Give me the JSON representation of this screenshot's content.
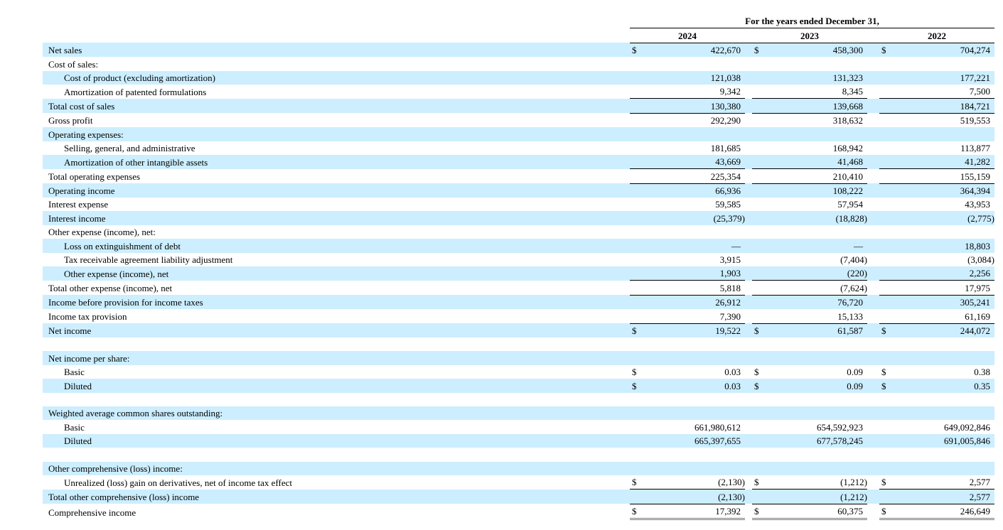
{
  "header": {
    "period": "For the years ended December 31,",
    "years": [
      "2024",
      "2023",
      "2022"
    ]
  },
  "currency_symbol": "$",
  "colors": {
    "shade": "#cceeff"
  },
  "rows": [
    {
      "label": "Net sales",
      "values": [
        "422,670",
        "458,300",
        "704,274"
      ],
      "dollar": true
    },
    {
      "label": "Cost of sales:",
      "values": [
        "",
        "",
        ""
      ]
    },
    {
      "label": "Cost of product (excluding amortization)",
      "indent": true,
      "values": [
        "121,038",
        "131,323",
        "177,221"
      ]
    },
    {
      "label": "Amortization of patented formulations",
      "indent": true,
      "values": [
        "9,342",
        "8,345",
        "7,500"
      ]
    },
    {
      "label": "Total cost of sales",
      "values": [
        "130,380",
        "139,668",
        "184,721"
      ],
      "ul": true
    },
    {
      "label": "Gross profit",
      "values": [
        "292,290",
        "318,632",
        "519,553"
      ],
      "ul": true
    },
    {
      "label": "Operating expenses:",
      "values": [
        "",
        "",
        ""
      ]
    },
    {
      "label": "Selling, general, and administrative",
      "indent": true,
      "values": [
        "181,685",
        "168,942",
        "113,877"
      ]
    },
    {
      "label": "Amortization of other intangible assets",
      "indent": true,
      "values": [
        "43,669",
        "41,468",
        "41,282"
      ]
    },
    {
      "label": "Total operating expenses",
      "values": [
        "225,354",
        "210,410",
        "155,159"
      ],
      "ul": true
    },
    {
      "label": "Operating income",
      "values": [
        "66,936",
        "108,222",
        "364,394"
      ],
      "ul": true
    },
    {
      "label": "Interest expense",
      "values": [
        "59,585",
        "57,954",
        "43,953"
      ]
    },
    {
      "label": "Interest income",
      "values": [
        "(25,379)",
        "(18,828)",
        "(2,775)"
      ],
      "tall": true
    },
    {
      "label": "Other expense (income), net:",
      "values": [
        "",
        "",
        ""
      ]
    },
    {
      "label": "Loss on extinguishment of debt",
      "indent": true,
      "values": [
        "—",
        "—",
        "18,803"
      ]
    },
    {
      "label": "Tax receivable agreement liability adjustment",
      "indent": true,
      "values": [
        "3,915",
        "(7,404)",
        "(3,084)"
      ]
    },
    {
      "label": "Other expense (income), net",
      "indent": true,
      "values": [
        "1,903",
        "(220)",
        "2,256"
      ]
    },
    {
      "label": "Total other expense (income), net",
      "values": [
        "5,818",
        "(7,624)",
        "17,975"
      ],
      "ul": true
    },
    {
      "label": "Income before provision for income taxes",
      "values": [
        "26,912",
        "76,720",
        "305,241"
      ],
      "ul": true
    },
    {
      "label": "Income tax provision",
      "values": [
        "7,390",
        "15,133",
        "61,169"
      ]
    },
    {
      "label": "Net income",
      "values": [
        "19,522",
        "61,587",
        "244,072"
      ],
      "dollar": true,
      "ul": true
    },
    {
      "label": "",
      "values": [
        "",
        "",
        ""
      ]
    },
    {
      "label": "Net income per share:",
      "values": [
        "",
        "",
        ""
      ]
    },
    {
      "label": "Basic",
      "indent": true,
      "values": [
        "0.03",
        "0.09",
        "0.38"
      ],
      "dollar": true
    },
    {
      "label": "Diluted",
      "indent": true,
      "values": [
        "0.03",
        "0.09",
        "0.35"
      ],
      "dollar": true
    },
    {
      "label": "",
      "values": [
        "",
        "",
        ""
      ]
    },
    {
      "label": "Weighted average common shares outstanding:",
      "values": [
        "",
        "",
        ""
      ]
    },
    {
      "label": "Basic",
      "indent": true,
      "values": [
        "661,980,612",
        "654,592,923",
        "649,092,846"
      ]
    },
    {
      "label": "Diluted",
      "indent": true,
      "values": [
        "665,397,655",
        "677,578,245",
        "691,005,846"
      ]
    },
    {
      "label": "",
      "values": [
        "",
        "",
        ""
      ]
    },
    {
      "label": "Other comprehensive (loss) income:",
      "values": [
        "",
        "",
        ""
      ]
    },
    {
      "label": "Unrealized (loss) gain on derivatives, net of income tax effect",
      "indent": true,
      "values": [
        "(2,130)",
        "(1,212)",
        "2,577"
      ],
      "dollar": true
    },
    {
      "label": "Total other comprehensive (loss) income",
      "values": [
        "(2,130)",
        "(1,212)",
        "2,577"
      ],
      "ul": true
    },
    {
      "label": "Comprehensive income",
      "values": [
        "17,392",
        "60,375",
        "246,649"
      ],
      "dollar": true,
      "ul": true,
      "dbl": true,
      "tall": true
    }
  ]
}
